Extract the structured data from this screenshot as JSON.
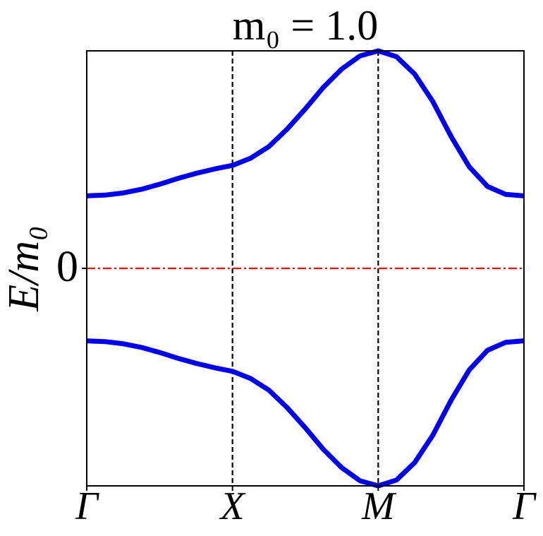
{
  "chart_data": {
    "type": "line",
    "title": "m₀ = 1.0",
    "ylabel": "E/m₀",
    "x": [
      0,
      0.125,
      0.25,
      0.375,
      0.5,
      0.625,
      0.75,
      0.875,
      1,
      1.125,
      1.25,
      1.375,
      1.5,
      1.625,
      1.75,
      1.875,
      2,
      2.125,
      2.25,
      2.375,
      2.5,
      2.625,
      2.75,
      2.875,
      3
    ],
    "series": [
      {
        "color": "#0000ee",
        "values": [
          1.0,
          1.01,
          1.04,
          1.09,
          1.16,
          1.24,
          1.31,
          1.37,
          1.42,
          1.52,
          1.68,
          1.92,
          2.2,
          2.5,
          2.75,
          2.93,
          3.0,
          2.92,
          2.68,
          2.3,
          1.82,
          1.4,
          1.13,
          1.02,
          1.0
        ]
      },
      {
        "color": "#0000ee",
        "values": [
          -1.0,
          -1.01,
          -1.04,
          -1.09,
          -1.16,
          -1.24,
          -1.31,
          -1.37,
          -1.42,
          -1.52,
          -1.68,
          -1.92,
          -2.2,
          -2.5,
          -2.75,
          -2.93,
          -3.0,
          -2.92,
          -2.68,
          -2.3,
          -1.82,
          -1.4,
          -1.13,
          -1.02,
          -1.0
        ]
      }
    ],
    "xlim": [
      0,
      3
    ],
    "ylim": [
      -3,
      3
    ],
    "xticks": [
      {
        "value": 0,
        "label": "Γ"
      },
      {
        "value": 1,
        "label": "X"
      },
      {
        "value": 2,
        "label": "M"
      },
      {
        "value": 3,
        "label": "Γ"
      }
    ],
    "yticks": [
      0
    ],
    "vlines": [
      1,
      2
    ],
    "vline_color": "#000000",
    "hlines": [
      0
    ],
    "hline_color": "#ff0000"
  }
}
